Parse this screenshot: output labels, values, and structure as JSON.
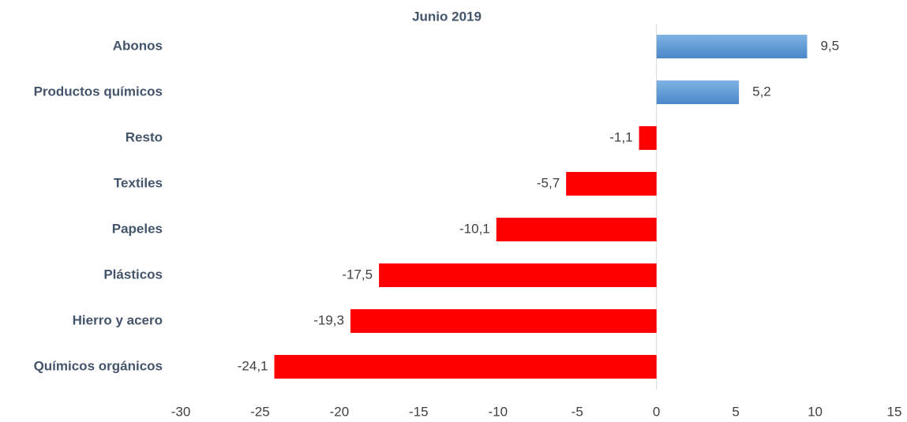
{
  "chart_data": {
    "type": "bar",
    "orientation": "horizontal",
    "title": "Junio 2019",
    "categories": [
      "Abonos",
      "Productos químicos",
      "Resto",
      "Textiles",
      "Papeles",
      "Plásticos",
      "Hierro y acero",
      "Químicos orgánicos"
    ],
    "values": [
      9.5,
      5.2,
      -1.1,
      -5.7,
      -10.1,
      -17.5,
      -19.3,
      -24.1
    ],
    "value_labels": [
      "9,5",
      "5,2",
      "-1,1",
      "-5,7",
      "-10,1",
      "-17,5",
      "-19,3",
      "-24,1"
    ],
    "colors": [
      "#5b9bd5",
      "#5b9bd5",
      "#ff0000",
      "#ff0000",
      "#ff0000",
      "#ff0000",
      "#ff0000",
      "#ff0000"
    ],
    "xlim": [
      -30,
      15
    ],
    "xticks": [
      -30,
      -25,
      -20,
      -15,
      -10,
      -5,
      0,
      5,
      10,
      15
    ],
    "grid": false
  }
}
